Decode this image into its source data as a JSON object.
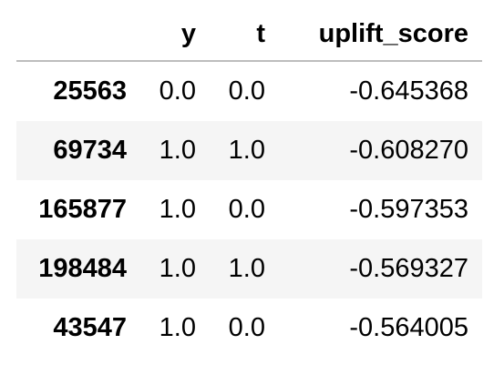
{
  "table": {
    "columns": {
      "index": "",
      "y": "y",
      "t": "t",
      "uplift_score": "uplift_score"
    },
    "rows": [
      {
        "index": "25563",
        "y": "0.0",
        "t": "0.0",
        "uplift_score": "-0.645368"
      },
      {
        "index": "69734",
        "y": "1.0",
        "t": "1.0",
        "uplift_score": "-0.608270"
      },
      {
        "index": "165877",
        "y": "1.0",
        "t": "0.0",
        "uplift_score": "-0.597353"
      },
      {
        "index": "198484",
        "y": "1.0",
        "t": "1.0",
        "uplift_score": "-0.569327"
      },
      {
        "index": "43547",
        "y": "1.0",
        "t": "0.0",
        "uplift_score": "-0.564005"
      }
    ]
  },
  "colors": {
    "stripe": "#f5f5f5",
    "header_rule": "#bdbdbd",
    "text": "#000000"
  }
}
